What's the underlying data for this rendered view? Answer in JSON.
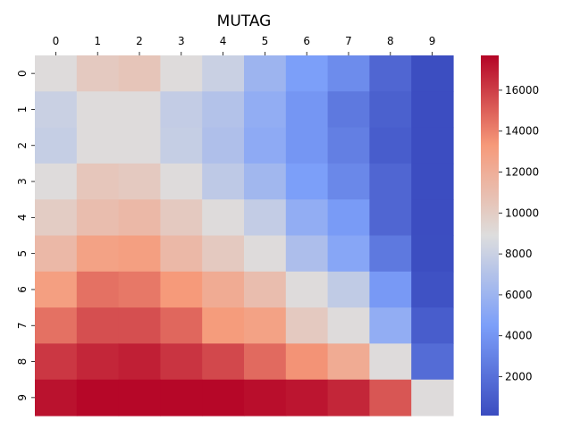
{
  "chart_data": {
    "type": "heatmap",
    "title": "MUTAG",
    "x_labels": [
      "0",
      "1",
      "2",
      "3",
      "4",
      "5",
      "6",
      "7",
      "8",
      "9"
    ],
    "y_labels": [
      "0",
      "1",
      "2",
      "3",
      "4",
      "5",
      "6",
      "7",
      "8",
      "9"
    ],
    "x_tick_position": "top",
    "colormap": "coolwarm",
    "vmin": 100,
    "vmax": 17700,
    "colorbar_ticks": [
      2000,
      4000,
      6000,
      8000,
      10000,
      12000,
      14000,
      16000
    ],
    "colorbar_tick_labels": [
      "2000",
      "4000",
      "6000",
      "8000",
      "10000",
      "12000",
      "14000",
      "16000"
    ],
    "values": [
      [
        9000,
        10200,
        10500,
        9000,
        8000,
        6000,
        4500,
        3500,
        1500,
        200
      ],
      [
        8000,
        9000,
        9000,
        7700,
        7000,
        5500,
        4000,
        2500,
        1200,
        150
      ],
      [
        7800,
        9000,
        9000,
        7800,
        6800,
        5300,
        4000,
        2800,
        1000,
        150
      ],
      [
        9000,
        10400,
        10200,
        9000,
        7500,
        6200,
        4500,
        3300,
        1500,
        150
      ],
      [
        10000,
        11000,
        11300,
        10200,
        9000,
        7700,
        5500,
        4300,
        1500,
        150
      ],
      [
        11300,
        12800,
        13000,
        11300,
        10200,
        9000,
        6700,
        5000,
        2500,
        200
      ],
      [
        13000,
        14500,
        14300,
        13300,
        12200,
        11000,
        9000,
        7600,
        4200,
        400
      ],
      [
        14500,
        15500,
        15500,
        14800,
        13200,
        12800,
        10200,
        9000,
        5500,
        1000
      ],
      [
        16200,
        16700,
        16900,
        16300,
        15700,
        14700,
        13500,
        12200,
        9000,
        1800
      ],
      [
        17300,
        17600,
        17600,
        17600,
        17600,
        17400,
        17200,
        16700,
        15300,
        9000
      ]
    ]
  }
}
